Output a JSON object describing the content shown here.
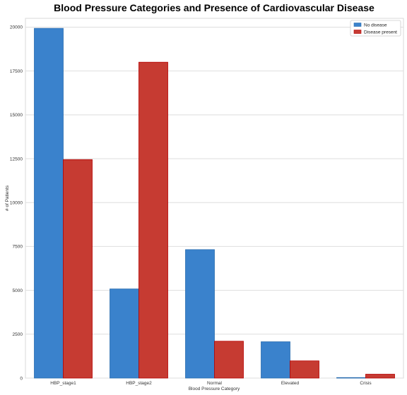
{
  "chart_data": {
    "type": "bar",
    "title": "Blood Pressure Categories and Presence of Cardiovascular Disease",
    "xlabel": "Blood Pressure Category",
    "ylabel": "# of Patients",
    "categories": [
      "HBP_stage1",
      "HBP_stage2",
      "Normal",
      "Elevated",
      "Crisis"
    ],
    "series": [
      {
        "name": "No disease",
        "values": [
          19930,
          5080,
          7320,
          2070,
          30
        ],
        "color": "#3a82cc",
        "edge": "#2a6db0"
      },
      {
        "name": "Disease present",
        "values": [
          12450,
          18000,
          2100,
          980,
          220
        ],
        "color": "#c63b32",
        "edge": "#b50000"
      }
    ],
    "yticks": [
      0,
      2500,
      5000,
      7500,
      10000,
      12500,
      15000,
      17500,
      20000
    ],
    "ylim": [
      0,
      20500
    ],
    "grid": true,
    "legend": "top-right"
  }
}
